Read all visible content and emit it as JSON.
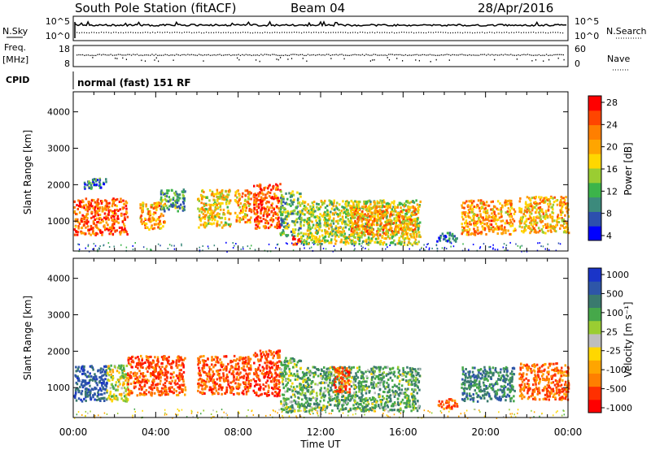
{
  "header": {
    "station": "South Pole Station (fitACF)",
    "beam": "Beam 04",
    "date": "28/Apr/2016"
  },
  "nsky_panel": {
    "label_left": "N.Sky",
    "label_right": "N.Search",
    "ticks_left": [
      "10^5",
      "10^0"
    ],
    "ticks_right": [
      "10^5",
      "10^0"
    ]
  },
  "freq_panel": {
    "label_left_line1": "Freq.",
    "label_left_line2": "[MHz]",
    "label_right": "Nave",
    "ticks_left": [
      "18",
      "8"
    ],
    "ticks_right": [
      "60",
      "0"
    ]
  },
  "cpid": {
    "label": "CPID",
    "text": "normal (fast) 151 RF"
  },
  "colors": {
    "power": [
      "#0000ff",
      "#2d4fae",
      "#3c8a7c",
      "#3cb44a",
      "#9acd32",
      "#ffd700",
      "#ffa500",
      "#ff7f00",
      "#ff4500",
      "#ff0000"
    ],
    "velocity": [
      "#1a34c8",
      "#2e56a8",
      "#3a7a6e",
      "#46a84a",
      "#9acd32",
      "#bebebe",
      "#ffd700",
      "#ffa500",
      "#ff7f00",
      "#ff3000",
      "#ff0000"
    ]
  },
  "chart_data": [
    {
      "type": "heatmap",
      "name": "power",
      "xlabel": "",
      "ylabel": "Slant Range [km]",
      "xlim": [
        "00:00",
        "24:00"
      ],
      "ylim": [
        180,
        4550
      ],
      "yticks": [
        "1000",
        "2000",
        "3000",
        "4000"
      ],
      "colorbar": {
        "label": "Power [dB]",
        "ticks": [
          "28",
          "24",
          "20",
          "16",
          "12",
          "8",
          "4"
        ],
        "range": [
          0,
          32
        ]
      },
      "echo_regions": [
        {
          "t0": 0.0,
          "t1": 2.6,
          "r0": 650,
          "r1": 1650,
          "level": 26
        },
        {
          "t0": 0.5,
          "t1": 1.6,
          "r0": 1900,
          "r1": 2200,
          "level": 7
        },
        {
          "t0": 3.2,
          "t1": 4.4,
          "r0": 800,
          "r1": 1550,
          "level": 22
        },
        {
          "t0": 4.2,
          "t1": 5.4,
          "r0": 1300,
          "r1": 1900,
          "level": 10
        },
        {
          "t0": 6.0,
          "t1": 7.6,
          "r0": 850,
          "r1": 1900,
          "level": 18
        },
        {
          "t0": 7.8,
          "t1": 8.6,
          "r0": 1000,
          "r1": 1900,
          "level": 22
        },
        {
          "t0": 8.7,
          "t1": 10.0,
          "r0": 800,
          "r1": 2050,
          "level": 26
        },
        {
          "t0": 10.0,
          "t1": 11.0,
          "r0": 600,
          "r1": 1850,
          "level": 12
        },
        {
          "t0": 10.6,
          "t1": 11.0,
          "r0": 380,
          "r1": 620,
          "level": 28
        },
        {
          "t0": 11.0,
          "t1": 16.8,
          "r0": 380,
          "r1": 1600,
          "level": 15
        },
        {
          "t0": 13.4,
          "t1": 16.6,
          "r0": 650,
          "r1": 1450,
          "level": 22
        },
        {
          "t0": 17.6,
          "t1": 18.6,
          "r0": 450,
          "r1": 720,
          "level": 6
        },
        {
          "t0": 18.8,
          "t1": 21.4,
          "r0": 650,
          "r1": 1600,
          "level": 22
        },
        {
          "t0": 21.6,
          "t1": 24.0,
          "r0": 700,
          "r1": 1700,
          "level": 20
        },
        {
          "t0": 0.0,
          "t1": 24.0,
          "r0": 180,
          "r1": 430,
          "level": 6
        }
      ]
    },
    {
      "type": "heatmap",
      "name": "velocity",
      "xlabel": "Time UT",
      "ylabel": "Slant Range [km]",
      "xlim": [
        "00:00",
        "24:00"
      ],
      "xticks": [
        "00:00",
        "04:00",
        "08:00",
        "12:00",
        "16:00",
        "20:00",
        "00:00"
      ],
      "ylim": [
        180,
        4550
      ],
      "yticks": [
        "1000",
        "2000",
        "3000",
        "4000"
      ],
      "colorbar": {
        "label": "Velocity [m s⁻¹]",
        "ticks": [
          "1000",
          "500",
          "100",
          "25",
          "-25",
          "-100",
          "-500",
          "-1000"
        ]
      },
      "echo_regions": [
        {
          "t0": 0.0,
          "t1": 1.6,
          "r0": 650,
          "r1": 1650,
          "level": 700
        },
        {
          "t0": 1.6,
          "t1": 2.6,
          "r0": 650,
          "r1": 1650,
          "level": 60
        },
        {
          "t0": 2.6,
          "t1": 5.4,
          "r0": 800,
          "r1": 1900,
          "level": -300
        },
        {
          "t0": 6.0,
          "t1": 8.6,
          "r0": 850,
          "r1": 1900,
          "level": -300
        },
        {
          "t0": 8.7,
          "t1": 10.0,
          "r0": 800,
          "r1": 2050,
          "level": -400
        },
        {
          "t0": 10.0,
          "t1": 11.0,
          "r0": 350,
          "r1": 1850,
          "level": 150
        },
        {
          "t0": 11.0,
          "t1": 16.8,
          "r0": 380,
          "r1": 1600,
          "level": 200
        },
        {
          "t0": 12.6,
          "t1": 13.4,
          "r0": 900,
          "r1": 1600,
          "level": -300
        },
        {
          "t0": 17.6,
          "t1": 18.6,
          "r0": 450,
          "r1": 720,
          "level": -300
        },
        {
          "t0": 18.8,
          "t1": 21.4,
          "r0": 650,
          "r1": 1600,
          "level": 400
        },
        {
          "t0": 21.6,
          "t1": 24.0,
          "r0": 700,
          "r1": 1700,
          "level": -250
        },
        {
          "t0": 0.0,
          "t1": 24.0,
          "r0": 180,
          "r1": 430,
          "level": 10
        }
      ]
    }
  ]
}
